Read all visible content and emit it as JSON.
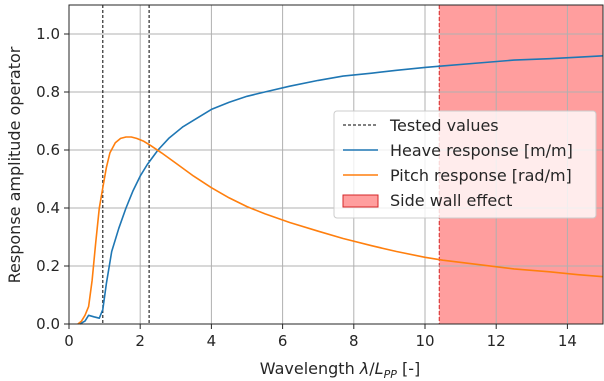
{
  "chart_data": {
    "type": "line",
    "title": "",
    "xlabel": "Wavelength λ/L_PP [-]",
    "xlabel_parts": {
      "main": "Wavelength ",
      "lambda": "λ",
      "slash": "/",
      "L": "L",
      "sub": "PP",
      "unit": " [-]"
    },
    "ylabel": "Response amplitude operator",
    "xlim": [
      0,
      15
    ],
    "ylim": [
      0,
      1.1
    ],
    "xticks": [
      0,
      2,
      4,
      6,
      8,
      10,
      12,
      14
    ],
    "xtick_labels": [
      "0",
      "2",
      "4",
      "6",
      "8",
      "10",
      "12",
      "14"
    ],
    "yticks": [
      0.0,
      0.2,
      0.4,
      0.6,
      0.8,
      1.0
    ],
    "ytick_labels": [
      "0.0",
      "0.2",
      "0.4",
      "0.6",
      "0.8",
      "1.0"
    ],
    "grid": true,
    "legend_position": "center-right",
    "tested_values": [
      0.95,
      2.25
    ],
    "tested_label": "Tested values",
    "side_wall": {
      "x_start": 10.4,
      "x_end": 15,
      "label": "Side wall effect",
      "color": "#ff9e9e",
      "line_color": "#d62728"
    },
    "series": [
      {
        "name": "Heave response [m/m]",
        "color": "#1f77b4",
        "x": [
          0.3,
          0.45,
          0.55,
          0.7,
          0.85,
          0.95,
          1.05,
          1.2,
          1.4,
          1.6,
          1.8,
          2.0,
          2.2,
          2.5,
          2.8,
          3.2,
          3.6,
          4.0,
          4.5,
          5.0,
          5.5,
          6.2,
          7.0,
          7.7,
          8.5,
          9.2,
          10.0,
          10.5,
          11.5,
          12.5,
          13.5,
          14.3,
          15.0
        ],
        "y": [
          0.0,
          0.01,
          0.03,
          0.025,
          0.02,
          0.05,
          0.14,
          0.25,
          0.33,
          0.4,
          0.46,
          0.51,
          0.55,
          0.6,
          0.64,
          0.68,
          0.71,
          0.74,
          0.765,
          0.785,
          0.8,
          0.82,
          0.84,
          0.855,
          0.865,
          0.875,
          0.885,
          0.89,
          0.9,
          0.91,
          0.915,
          0.92,
          0.925
        ]
      },
      {
        "name": "Pitch response [rad/m]",
        "color": "#ff7f0e",
        "x": [
          0.25,
          0.35,
          0.45,
          0.55,
          0.65,
          0.75,
          0.85,
          0.95,
          1.05,
          1.15,
          1.3,
          1.45,
          1.6,
          1.75,
          1.9,
          2.1,
          2.3,
          2.6,
          3.0,
          3.5,
          4.0,
          4.5,
          5.0,
          5.5,
          6.2,
          7.0,
          7.7,
          8.5,
          9.2,
          10.0,
          10.5,
          11.5,
          12.5,
          13.5,
          14.3,
          15.0
        ],
        "y": [
          0.0,
          0.01,
          0.03,
          0.06,
          0.15,
          0.28,
          0.4,
          0.47,
          0.54,
          0.59,
          0.625,
          0.64,
          0.645,
          0.645,
          0.64,
          0.63,
          0.615,
          0.59,
          0.555,
          0.51,
          0.47,
          0.435,
          0.405,
          0.38,
          0.35,
          0.32,
          0.295,
          0.27,
          0.25,
          0.23,
          0.22,
          0.205,
          0.19,
          0.18,
          0.17,
          0.163
        ]
      }
    ]
  }
}
